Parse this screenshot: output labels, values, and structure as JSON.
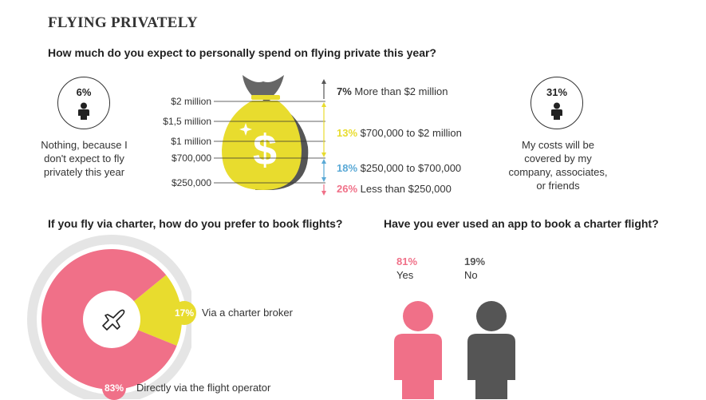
{
  "title": "FLYING PRIVATELY",
  "colors": {
    "pink": "#f07088",
    "yellow": "#e8dc2e",
    "blue": "#5aa9d6",
    "dark": "#555555",
    "gray": "#e5e5e5"
  },
  "spend": {
    "question": "How much do you expect to personally spend on flying private this year?",
    "left_stat": {
      "pct": "6%",
      "text_lines": [
        "Nothing, because I",
        "don't expect to fly",
        "privately this year"
      ]
    },
    "right_stat": {
      "pct": "31%",
      "text_lines": [
        "My costs will be",
        "covered by my",
        "company, associates,",
        "or friends"
      ]
    },
    "scale_labels": [
      "$2 million",
      "$1,5 million",
      "$1 million",
      "$700,000",
      "$250,000"
    ],
    "brackets": [
      {
        "pct": "7%",
        "label": "More than $2 million",
        "color": "#555555"
      },
      {
        "pct": "13%",
        "label": "$700,000 to $2 million",
        "color": "#e8dc2e"
      },
      {
        "pct": "18%",
        "label": "$250,000 to $700,000",
        "color": "#5aa9d6"
      },
      {
        "pct": "26%",
        "label": "Less than $250,000",
        "color": "#f07088"
      }
    ],
    "bag_icon": "money-bag-dollar-icon"
  },
  "booking": {
    "question": "If you fly via charter, how do you prefer to book flights?",
    "center_icon": "airplane-icon"
  },
  "app": {
    "question": "Have you ever used an app to book a charter flight?",
    "yes": {
      "pct": "81%",
      "label": "Yes",
      "color": "#f07088"
    },
    "no": {
      "pct": "19%",
      "label": "No",
      "color": "#555555"
    }
  },
  "chart_data": [
    {
      "type": "pie",
      "title": "If you fly via charter, how do you prefer to book flights?",
      "categories": [
        "Directly via the flight operator",
        "Via a charter broker"
      ],
      "values": [
        83,
        17
      ],
      "labels": [
        "83%",
        "17%"
      ],
      "colors": [
        "#f07088",
        "#e8dc2e"
      ]
    },
    {
      "type": "bar",
      "title": "How much do you expect to personally spend on flying private this year?",
      "categories": [
        "More than $2 million",
        "$700,000 to $2 million",
        "$250,000 to $700,000",
        "Less than $250,000"
      ],
      "values": [
        7,
        13,
        18,
        26
      ]
    },
    {
      "type": "bar",
      "title": "Have you ever used an app to book a charter flight?",
      "categories": [
        "Yes",
        "No"
      ],
      "values": [
        81,
        19
      ]
    }
  ]
}
